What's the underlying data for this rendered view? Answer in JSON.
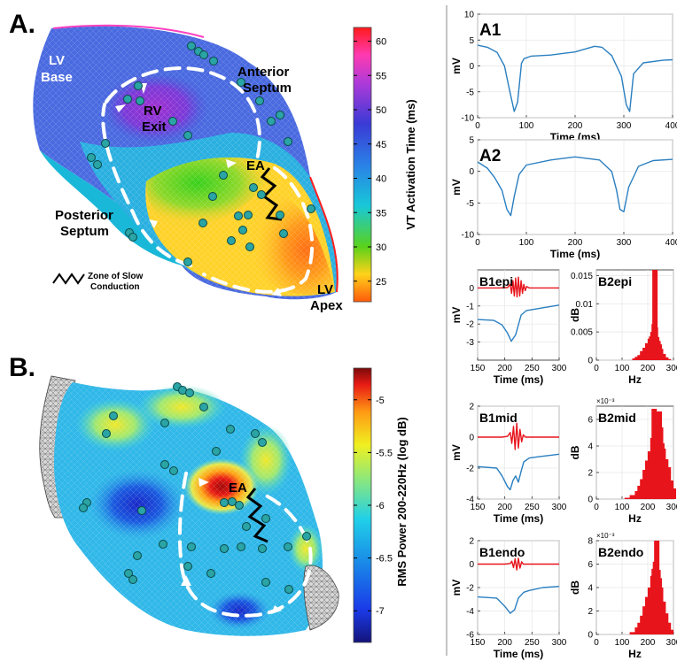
{
  "panelA": {
    "letter": "A.",
    "labels": {
      "lv_base_1": "LV",
      "lv_base_2": "Base",
      "rv_exit_1": "RV",
      "rv_exit_2": "Exit",
      "anterior_1": "Anterior",
      "anterior_2": "Septum",
      "posterior_1": "Posterior",
      "posterior_2": "Septum",
      "ea": "EA",
      "lv_apex_1": "LV",
      "lv_apex_2": "Apex"
    },
    "slow_legend_1": "Zone of Slow",
    "slow_legend_2": "Conduction",
    "colorbar": {
      "label": "VT Activation Time (ms)",
      "ticks": [
        "60",
        "55",
        "50",
        "45",
        "40",
        "35",
        "30",
        "25"
      ],
      "tick_values": [
        60,
        55,
        50,
        45,
        40,
        35,
        30,
        25
      ],
      "range": [
        22,
        62
      ]
    }
  },
  "panelB": {
    "letter": "B.",
    "labels": {
      "ea": "EA"
    },
    "colorbar": {
      "label": "RMS Power 200-220Hz (log dB)",
      "ticks": [
        "-5",
        "-5.5",
        "-6",
        "-6.5",
        "-7"
      ],
      "tick_values": [
        -5,
        -5.5,
        -6,
        -6.5,
        -7
      ],
      "range": [
        -7.3,
        -4.7
      ]
    }
  },
  "colors": {
    "trace_blue": "#2a7fc1",
    "trace_red": "#e8141c",
    "electrode": "#2aa4a4",
    "arrow": "#ffffff"
  },
  "chart_data": [
    {
      "type": "line",
      "title": "A1",
      "xlabel": "Time (ms)",
      "ylabel": "mV",
      "xlim": [
        0,
        400
      ],
      "ylim": [
        -10,
        10
      ],
      "xticks": [
        "0",
        "100",
        "200",
        "300",
        "400"
      ],
      "xtick_values": [
        0,
        100,
        200,
        300,
        400
      ],
      "yticks": [
        "10",
        "5",
        "0",
        "-5",
        "-10"
      ],
      "ytick_values": [
        10,
        5,
        0,
        -5,
        -10
      ],
      "series": [
        {
          "color": "#2a7fc1",
          "x": [
            0,
            20,
            40,
            55,
            65,
            75,
            82,
            90,
            95,
            110,
            150,
            200,
            240,
            255,
            275,
            295,
            305,
            312,
            320,
            340,
            380,
            400
          ],
          "y": [
            4,
            3.6,
            2.6,
            0,
            -4.5,
            -8.8,
            -7,
            0.5,
            1.4,
            1.9,
            2.1,
            2.7,
            3.8,
            3.6,
            2,
            -2,
            -7.5,
            -8.8,
            -1.5,
            0.6,
            1.1,
            1.2
          ]
        }
      ]
    },
    {
      "type": "line",
      "title": "A2",
      "xlabel": "Time (ms)",
      "ylabel": "mV",
      "xlim": [
        0,
        400
      ],
      "ylim": [
        -10,
        5
      ],
      "xticks": [
        "0",
        "100",
        "200",
        "300",
        "400"
      ],
      "xtick_values": [
        0,
        100,
        200,
        300,
        400
      ],
      "yticks": [
        "5",
        "0",
        "-5",
        "-10"
      ],
      "ytick_values": [
        5,
        0,
        -5,
        -10
      ],
      "series": [
        {
          "color": "#2a7fc1",
          "x": [
            0,
            20,
            35,
            50,
            60,
            68,
            75,
            85,
            100,
            150,
            200,
            250,
            275,
            285,
            292,
            300,
            310,
            330,
            360,
            400
          ],
          "y": [
            1.5,
            0.5,
            -1,
            -3,
            -6,
            -7,
            -4,
            -0.5,
            1,
            1.8,
            2.3,
            1.8,
            0,
            -3,
            -6,
            -6.4,
            -2.5,
            0.8,
            1.7,
            1.9
          ]
        }
      ]
    },
    {
      "type": "line",
      "title": "B1epi",
      "xlabel": "Time (ms)",
      "ylabel": "mV",
      "xlim": [
        150,
        300
      ],
      "ylim": [
        -4,
        1
      ],
      "xticks": [
        "150",
        "200",
        "250",
        "300"
      ],
      "xtick_values": [
        150,
        200,
        250,
        300
      ],
      "yticks": [
        "0",
        "-1",
        "-2",
        "-3"
      ],
      "ytick_values": [
        0,
        -1,
        -2,
        -3
      ],
      "series": [
        {
          "color": "#2a7fc1",
          "x": [
            150,
            180,
            195,
            205,
            212,
            220,
            230,
            240,
            250,
            270,
            300
          ],
          "y": [
            -1.75,
            -1.8,
            -2.05,
            -2.5,
            -2.95,
            -2.6,
            -1.5,
            -1.25,
            -1.2,
            -1.1,
            -0.95
          ]
        },
        {
          "color": "#e8141c",
          "x": [
            150,
            190,
            205,
            210,
            212.5,
            215,
            217.5,
            220,
            222.5,
            225,
            227.5,
            230,
            232.5,
            235,
            237.5,
            240,
            245,
            260,
            300
          ],
          "y": [
            0,
            0,
            0.02,
            0.2,
            -0.3,
            0.4,
            -0.45,
            0.55,
            -0.5,
            0.6,
            -0.45,
            0.4,
            -0.3,
            0.2,
            -0.15,
            0.08,
            0,
            0,
            0
          ]
        }
      ]
    },
    {
      "type": "bar",
      "title": "B2epi",
      "xlabel": "Hz",
      "ylabel": "dB",
      "xlim": [
        0,
        300
      ],
      "ylim": [
        0,
        0.016
      ],
      "xticks": [
        "0",
        "100",
        "200",
        "300"
      ],
      "xtick_values": [
        0,
        100,
        200,
        300
      ],
      "yticks": [
        "0.015",
        "0.01",
        "0.005",
        "0"
      ],
      "ytick_values": [
        0.015,
        0.01,
        0.005,
        0
      ],
      "series": [
        {
          "color": "#e8141c",
          "x": [
            150,
            160,
            170,
            180,
            190,
            200,
            210,
            215,
            220,
            225,
            228,
            230,
            235,
            240,
            245,
            250,
            260,
            270,
            280
          ],
          "y": [
            0.0003,
            0.0006,
            0.0009,
            0.0016,
            0.0022,
            0.003,
            0.0038,
            0.0042,
            0.005,
            0.0064,
            0.016,
            0.0058,
            0.0041,
            0.0034,
            0.0028,
            0.002,
            0.0011,
            0.0005,
            0.0002
          ]
        }
      ]
    },
    {
      "type": "line",
      "title": "B1mid",
      "xlabel": "Time (ms)",
      "ylabel": "mV",
      "xlim": [
        150,
        300
      ],
      "ylim": [
        -4,
        2
      ],
      "xticks": [
        "150",
        "200",
        "250",
        "300"
      ],
      "xtick_values": [
        150,
        200,
        250,
        300
      ],
      "yticks": [
        "2",
        "0",
        "-2",
        "-4"
      ],
      "ytick_values": [
        2,
        0,
        -2,
        -4
      ],
      "series": [
        {
          "color": "#2a7fc1",
          "x": [
            150,
            185,
            195,
            205,
            210,
            215,
            220,
            225,
            230,
            235,
            245,
            265,
            300
          ],
          "y": [
            -1.9,
            -2,
            -2.5,
            -3.2,
            -3.4,
            -2.8,
            -2.5,
            -2.9,
            -2.2,
            -1.6,
            -1.35,
            -1.25,
            -1.1
          ]
        },
        {
          "color": "#e8141c",
          "x": [
            150,
            195,
            205,
            210,
            213,
            216,
            219,
            222,
            225,
            228,
            231,
            234,
            238,
            250,
            300
          ],
          "y": [
            0,
            0,
            0.05,
            0.3,
            -0.4,
            0.7,
            -0.8,
            0.9,
            -0.7,
            0.5,
            -0.3,
            0.15,
            0,
            0,
            0
          ]
        }
      ]
    },
    {
      "type": "bar",
      "title": "B2mid",
      "xlabel": "Hz",
      "ylabel": "dB",
      "y_multiplier": "×10⁻³",
      "xlim": [
        0,
        300
      ],
      "ylim": [
        0,
        7
      ],
      "xticks": [
        "0",
        "100",
        "200",
        "300"
      ],
      "xtick_values": [
        0,
        100,
        200,
        300
      ],
      "yticks": [
        "6",
        "4",
        "2",
        "0"
      ],
      "ytick_values": [
        6,
        4,
        2,
        0
      ],
      "series": [
        {
          "color": "#e8141c",
          "x": [
            120,
            140,
            160,
            170,
            180,
            190,
            200,
            210,
            220,
            225,
            230,
            235,
            240,
            245,
            250,
            255,
            260,
            270,
            280,
            290,
            300
          ],
          "y": [
            0.1,
            0.3,
            0.6,
            1.0,
            1.5,
            2.2,
            2.9,
            3.6,
            4.6,
            6.8,
            5.2,
            4.4,
            5.6,
            6.6,
            5.4,
            4.2,
            3.8,
            3.0,
            2.4,
            1.4,
            0.8
          ]
        }
      ]
    },
    {
      "type": "line",
      "title": "B1endo",
      "xlabel": "Time (ms)",
      "ylabel": "mV",
      "xlim": [
        150,
        300
      ],
      "ylim": [
        -6,
        2
      ],
      "xticks": [
        "150",
        "200",
        "250",
        "300"
      ],
      "xtick_values": [
        150,
        200,
        250,
        300
      ],
      "yticks": [
        "2",
        "0",
        "-2",
        "-4",
        "-6"
      ],
      "ytick_values": [
        2,
        0,
        -2,
        -4,
        -6
      ],
      "series": [
        {
          "color": "#2a7fc1",
          "x": [
            150,
            185,
            200,
            210,
            218,
            225,
            235,
            245,
            270,
            300
          ],
          "y": [
            -2.8,
            -2.9,
            -3.6,
            -4.2,
            -3.9,
            -2.9,
            -2.4,
            -2.25,
            -2.0,
            -1.9
          ]
        },
        {
          "color": "#e8141c",
          "x": [
            150,
            200,
            210,
            213,
            216,
            219,
            222,
            225,
            228,
            231,
            234,
            245,
            300
          ],
          "y": [
            0,
            0,
            0.05,
            0.25,
            -0.3,
            0.45,
            -0.5,
            0.5,
            -0.35,
            0.2,
            0,
            0,
            0
          ]
        }
      ]
    },
    {
      "type": "bar",
      "title": "B2endo",
      "xlabel": "Hz",
      "ylabel": "dB",
      "y_multiplier": "×10⁻³",
      "xlim": [
        0,
        300
      ],
      "ylim": [
        0,
        8
      ],
      "xticks": [
        "0",
        "100",
        "200",
        "300"
      ],
      "xtick_values": [
        0,
        100,
        200,
        300
      ],
      "yticks": [
        "8",
        "6",
        "4",
        "2",
        "0"
      ],
      "ytick_values": [
        8,
        6,
        4,
        2,
        0
      ],
      "series": [
        {
          "color": "#e8141c",
          "x": [
            140,
            160,
            170,
            180,
            190,
            200,
            210,
            220,
            225,
            230,
            235,
            240,
            245,
            250,
            260,
            270,
            280,
            290
          ],
          "y": [
            0.2,
            0.6,
            1.0,
            1.6,
            2.4,
            3.2,
            4.0,
            5.0,
            5.6,
            6.2,
            8.0,
            5.5,
            4.8,
            4.0,
            2.8,
            1.8,
            1.0,
            0.4
          ]
        }
      ]
    }
  ]
}
